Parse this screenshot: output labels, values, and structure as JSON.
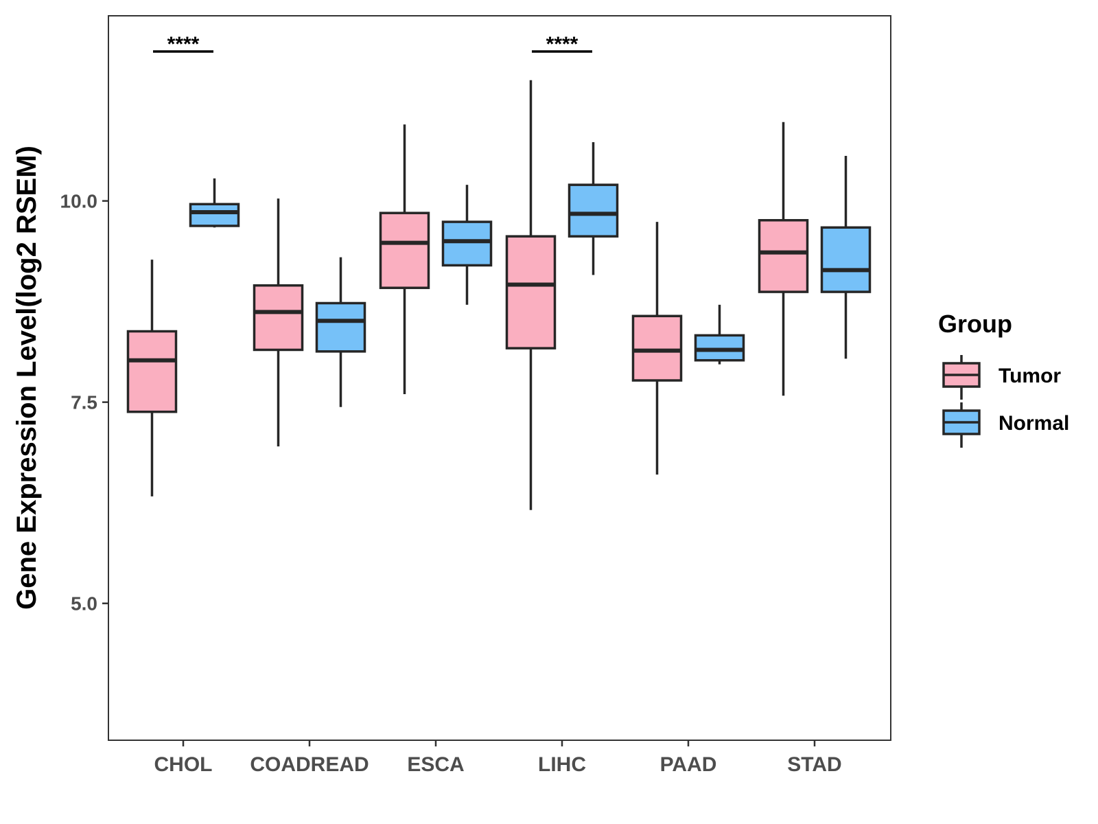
{
  "chart_data": {
    "type": "boxplot",
    "title": "",
    "xlabel": "",
    "ylabel": "Gene Expression Level(log2 RSEM)",
    "ylim": [
      3.3,
      12.3
    ],
    "yticks": [
      5.0,
      7.5,
      10.0
    ],
    "ytick_labels": [
      "5.0",
      "7.5",
      "10.0"
    ],
    "categories": [
      "CHOL",
      "COADREAD",
      "ESCA",
      "LIHC",
      "PAAD",
      "STAD"
    ],
    "legend": {
      "title": "Group",
      "position": "right",
      "entries": [
        {
          "name": "Tumor",
          "color": "#FAAFC0"
        },
        {
          "name": "Normal",
          "color": "#76C1F8"
        }
      ]
    },
    "series": [
      {
        "name": "Tumor",
        "color": "#FAAFC0",
        "boxes": [
          {
            "category": "CHOL",
            "lower": 6.33,
            "q1": 7.38,
            "median": 8.02,
            "q3": 8.38,
            "upper": 9.27
          },
          {
            "category": "COADREAD",
            "lower": 6.95,
            "q1": 8.15,
            "median": 8.62,
            "q3": 8.95,
            "upper": 10.03
          },
          {
            "category": "ESCA",
            "lower": 7.6,
            "q1": 8.92,
            "median": 9.48,
            "q3": 9.85,
            "upper": 10.95
          },
          {
            "category": "LIHC",
            "lower": 6.16,
            "q1": 8.17,
            "median": 8.96,
            "q3": 9.56,
            "upper": 11.5
          },
          {
            "category": "PAAD",
            "lower": 6.6,
            "q1": 7.77,
            "median": 8.14,
            "q3": 8.57,
            "upper": 9.74
          },
          {
            "category": "STAD",
            "lower": 7.58,
            "q1": 8.87,
            "median": 9.36,
            "q3": 9.76,
            "upper": 10.98
          }
        ]
      },
      {
        "name": "Normal",
        "color": "#76C1F8",
        "boxes": [
          {
            "category": "CHOL",
            "lower": 9.67,
            "q1": 9.69,
            "median": 9.86,
            "q3": 9.96,
            "upper": 10.28
          },
          {
            "category": "COADREAD",
            "lower": 7.44,
            "q1": 8.13,
            "median": 8.51,
            "q3": 8.73,
            "upper": 9.3
          },
          {
            "category": "ESCA",
            "lower": 8.71,
            "q1": 9.2,
            "median": 9.5,
            "q3": 9.74,
            "upper": 10.2
          },
          {
            "category": "LIHC",
            "lower": 9.08,
            "q1": 9.56,
            "median": 9.84,
            "q3": 10.2,
            "upper": 10.73
          },
          {
            "category": "PAAD",
            "lower": 7.97,
            "q1": 8.02,
            "median": 8.15,
            "q3": 8.33,
            "upper": 8.71
          },
          {
            "category": "STAD",
            "lower": 8.04,
            "q1": 8.87,
            "median": 9.14,
            "q3": 9.67,
            "upper": 10.56
          }
        ]
      }
    ],
    "significance": [
      {
        "category": "CHOL",
        "label": "****"
      },
      {
        "category": "COADREAD",
        "label": ""
      },
      {
        "category": "ESCA",
        "label": ""
      },
      {
        "category": "LIHC",
        "label": "****"
      },
      {
        "category": "PAAD",
        "label": ""
      },
      {
        "category": "STAD",
        "label": ""
      }
    ]
  }
}
